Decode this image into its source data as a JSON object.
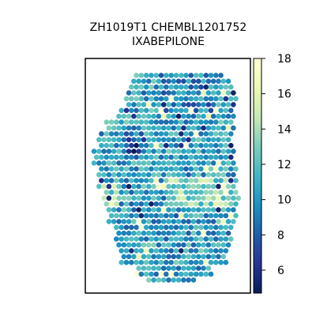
{
  "chart_data": {
    "type": "scatter",
    "title_line1": "ZH1019T1 CHEMBL1201752",
    "title_line2": "IXABEPILONE",
    "xlabel": "",
    "ylabel": "",
    "grid": false,
    "colormap": "YlGnBu_r",
    "colorbar": {
      "range": [
        4.7,
        18.0
      ],
      "ticks": [
        6,
        8,
        10,
        12,
        14,
        16,
        18
      ]
    },
    "value_range": [
      4.7,
      18.0
    ],
    "spots": {
      "grid_rows": 36,
      "grid_cols": 26,
      "description_of_values": "per-spot predicted sensitivity, mostly 9-13; low (~5-8) cluster at upper-left near row 9-10, col 3-5; high (~14-17) patches in center-right rows 18-22 and scattered near edges"
    }
  }
}
